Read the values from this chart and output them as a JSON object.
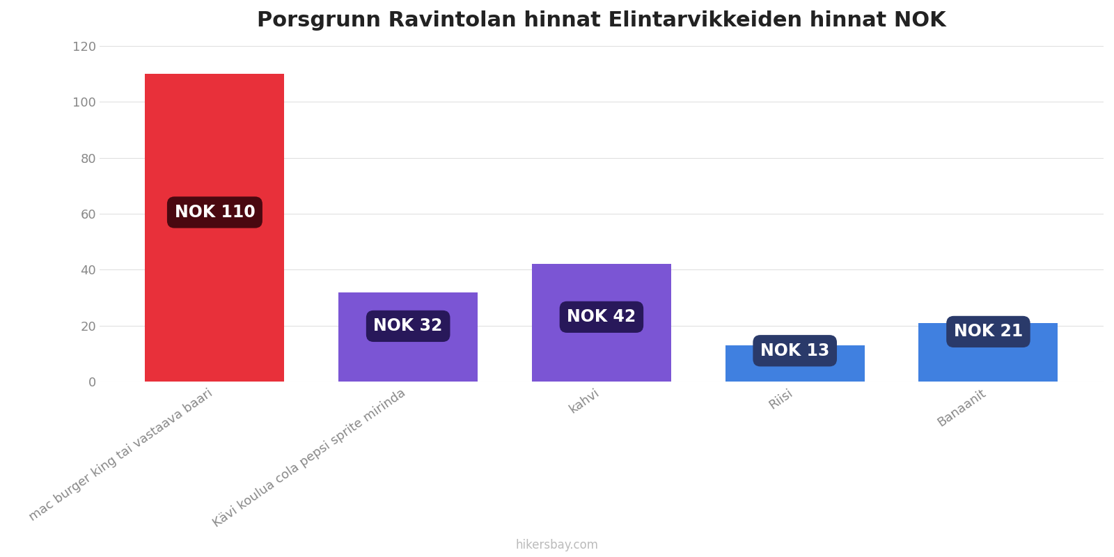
{
  "title": "Porsgrunn Ravintolan hinnat Elintarvikkeiden hinnat NOK",
  "categories": [
    "mac burger king tai vastaava baari",
    "Kävi koulua cola pepsi sprite mirinda",
    "kahvi",
    "Riisi",
    "Banaanit"
  ],
  "values": [
    110,
    32,
    42,
    13,
    21
  ],
  "bar_colors": [
    "#e8303a",
    "#7b55d4",
    "#7b55d4",
    "#4080e0",
    "#4080e0"
  ],
  "label_texts": [
    "NOK 110",
    "NOK 32",
    "NOK 42",
    "NOK 13",
    "NOK 21"
  ],
  "label_bg_colors": [
    "#4a0810",
    "#28185a",
    "#28185a",
    "#2a3a6a",
    "#2a3a6a"
  ],
  "ylim": [
    0,
    120
  ],
  "yticks": [
    0,
    20,
    40,
    60,
    80,
    100,
    120
  ],
  "background_color": "#ffffff",
  "title_fontsize": 22,
  "tick_fontsize": 13,
  "watermark": "hikersbay.com",
  "bar_width": 0.72,
  "label_fontsize": 17
}
